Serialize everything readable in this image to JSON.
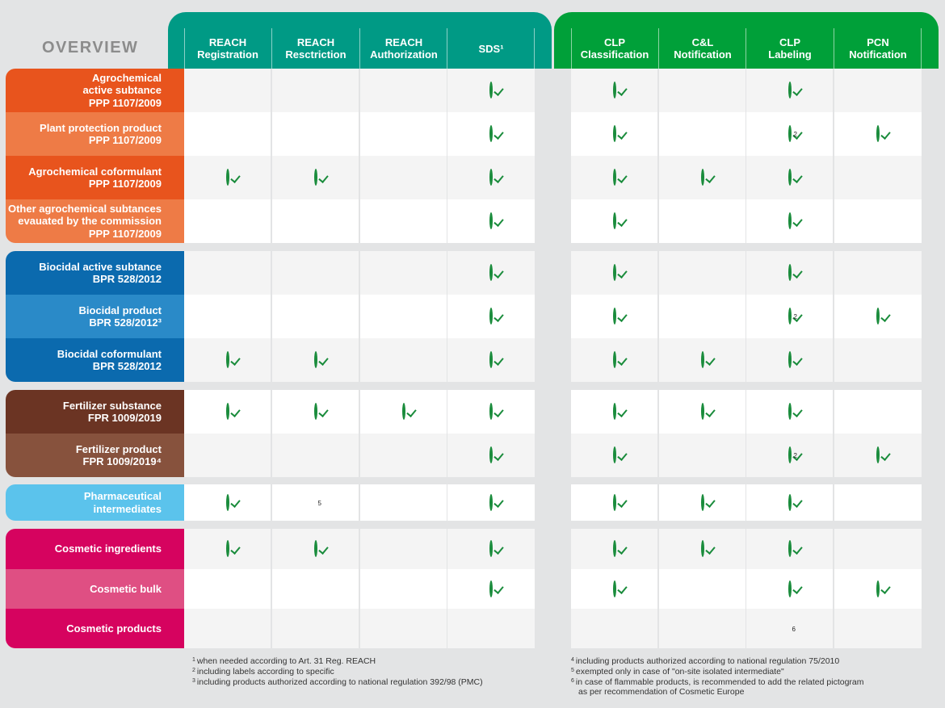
{
  "title": "OVERVIEW",
  "columns": [
    {
      "label": "REACH\nRegistration"
    },
    {
      "label": "REACH\nResctriction"
    },
    {
      "label": "REACH\nAuthorization"
    },
    {
      "label": "SDS¹"
    },
    {
      "label": "CLP\nClassification"
    },
    {
      "label": "C&L\nNotification"
    },
    {
      "label": "CLP\nLabeling"
    },
    {
      "label": "PCN\nNotification"
    }
  ],
  "colors": {
    "agro_dark": "#e8541d",
    "agro_light": "#ee7b46",
    "bio_dark": "#0b6aae",
    "bio_light": "#2a8ac8",
    "fert_dark": "#6b3423",
    "fert_light": "#87523d",
    "pharma": "#5bc3ec",
    "cosm_dark": "#d6035f",
    "cosm_light": "#df4f83",
    "teal": "#009a85",
    "green": "#00a039",
    "check": "#1a8c3c"
  },
  "rows": [
    {
      "label": "Agrochemical\nactive  subtance\nPPP 1107/2009",
      "color": "agro_dark",
      "cells": [
        "—",
        "—",
        "—",
        "check",
        "check",
        "—",
        "check",
        "—"
      ],
      "sups": [
        "",
        "",
        "",
        "",
        "",
        "",
        "",
        ""
      ]
    },
    {
      "label": "Plant protection product\nPPP 1107/2009",
      "color": "agro_light",
      "cells": [
        "—",
        "—",
        "—",
        "check",
        "check",
        "—",
        "check",
        "check"
      ],
      "sups": [
        "",
        "",
        "",
        "",
        "",
        "",
        "2",
        ""
      ]
    },
    {
      "label": "Agrochemical coformulant\nPPP 1107/2009",
      "color": "agro_dark",
      "cells": [
        "check",
        "check",
        "—",
        "check",
        "check",
        "check",
        "check",
        ""
      ],
      "sups": [
        "",
        "",
        "",
        "",
        "",
        "",
        "",
        ""
      ]
    },
    {
      "label": "Other agrochemical subtances\nevauated by the commission\nPPP 1107/2009",
      "color": "agro_light",
      "cells": [
        "—",
        "—",
        "—",
        "check",
        "check",
        "—",
        "check",
        "—"
      ],
      "sups": [
        "",
        "",
        "",
        "",
        "",
        "",
        "",
        ""
      ]
    },
    {
      "label": "Biocidal active subtance\nBPR 528/2012",
      "color": "bio_dark",
      "cells": [
        "—",
        "—",
        "—",
        "check",
        "check",
        "—",
        "check",
        "—"
      ],
      "sups": [
        "",
        "",
        "",
        "",
        "",
        "",
        "",
        ""
      ]
    },
    {
      "label": "Biocidal product\nBPR 528/2012³",
      "color": "bio_light",
      "cells": [
        "—",
        "—",
        "—",
        "check",
        "check",
        "—",
        "check",
        "check"
      ],
      "sups": [
        "",
        "",
        "",
        "",
        "",
        "",
        "2",
        ""
      ]
    },
    {
      "label": "Biocidal coformulant\nBPR 528/2012",
      "color": "bio_dark",
      "cells": [
        "check",
        "check",
        "",
        "check",
        "check",
        "check",
        "check",
        "—"
      ],
      "sups": [
        "",
        "",
        "",
        "",
        "",
        "",
        "",
        ""
      ]
    },
    {
      "label": "Fertilizer substance\nFPR 1009/2019",
      "color": "fert_dark",
      "cells": [
        "check",
        "check",
        "check",
        "check",
        "check",
        "check",
        "check",
        "—"
      ],
      "sups": [
        "",
        "",
        "",
        "",
        "",
        "",
        "",
        ""
      ]
    },
    {
      "label": "Fertilizer product\nFPR 1009/2019⁴",
      "color": "fert_light",
      "cells": [
        "—",
        "—",
        "—",
        "check",
        "check",
        "—",
        "check",
        "check"
      ],
      "sups": [
        "",
        "",
        "",
        "",
        "",
        "",
        "2",
        ""
      ]
    },
    {
      "label": "Pharmaceutical\nintermediates",
      "color": "pharma",
      "cells": [
        "check",
        "—",
        "—",
        "check",
        "check",
        "check",
        "check",
        "—"
      ],
      "sups": [
        "",
        "5",
        "",
        "",
        "",
        "",
        "",
        ""
      ]
    },
    {
      "label": "Cosmetic ingredients",
      "color": "cosm_dark",
      "cells": [
        "check",
        "check",
        "—",
        "check",
        "check",
        "check",
        "check",
        "—"
      ],
      "sups": [
        "",
        "",
        "",
        "",
        "",
        "",
        "",
        ""
      ]
    },
    {
      "label": "Cosmetic bulk",
      "color": "cosm_light",
      "cells": [
        "—",
        "—",
        "—",
        "check",
        "check",
        "—",
        "check",
        "check"
      ],
      "sups": [
        "",
        "",
        "",
        "",
        "",
        "",
        "",
        ""
      ]
    },
    {
      "label": "Cosmetic products",
      "color": "cosm_dark",
      "cells": [
        "—",
        "—",
        "—",
        "—",
        "—",
        "—",
        "—",
        "—"
      ],
      "sups": [
        "",
        "",
        "",
        "",
        "",
        "",
        "6",
        ""
      ]
    }
  ],
  "footnotes_left": [
    {
      "num": "1",
      "text": "when needed according to Art. 31 Reg. REACH"
    },
    {
      "num": "2",
      "text": "including labels according to specific"
    },
    {
      "num": "3",
      "text": "including products authorized according to national regulation 392/98 (PMC)"
    }
  ],
  "footnotes_right": [
    {
      "num": "4",
      "text": "including products authorized according to national regulation 75/2010"
    },
    {
      "num": "5",
      "text": "exempted only in case of \"on-site isolated intermediate\""
    },
    {
      "num": "6",
      "text": "in case of flammable products, is recommended to add the related pictogram"
    },
    {
      "num": "",
      "text": "as per recommendation of Cosmetic Europe"
    }
  ]
}
